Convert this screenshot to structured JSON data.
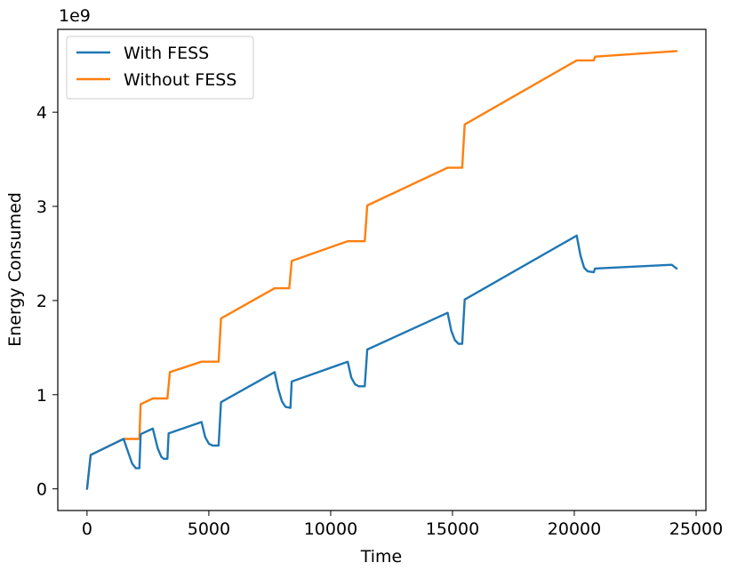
{
  "chart_data": {
    "type": "line",
    "xlabel": "Time",
    "ylabel": "Energy Consumed",
    "y_scale_label": "1e9",
    "xlim": [
      -1200,
      25400
    ],
    "ylim": [
      -0.23,
      4.88
    ],
    "xticks": [
      0,
      5000,
      10000,
      15000,
      20000,
      25000
    ],
    "xtick_labels": [
      "0",
      "5000",
      "10000",
      "15000",
      "20000",
      "25000"
    ],
    "yticks": [
      0,
      1,
      2,
      3,
      4
    ],
    "ytick_labels": [
      "0",
      "1",
      "2",
      "3",
      "4"
    ],
    "grid": false,
    "legend_position": "upper-left",
    "series": [
      {
        "name": "With FESS",
        "color": "#1f77b4",
        "points": [
          [
            0,
            0
          ],
          [
            150,
            0.36
          ],
          [
            1500,
            0.53
          ],
          [
            1700,
            0.38
          ],
          [
            1850,
            0.27
          ],
          [
            2000,
            0.22
          ],
          [
            2150,
            0.22
          ],
          [
            2200,
            0.58
          ],
          [
            2700,
            0.64
          ],
          [
            2900,
            0.43
          ],
          [
            3050,
            0.34
          ],
          [
            3150,
            0.32
          ],
          [
            3300,
            0.32
          ],
          [
            3350,
            0.59
          ],
          [
            4700,
            0.71
          ],
          [
            4850,
            0.55
          ],
          [
            5000,
            0.48
          ],
          [
            5150,
            0.46
          ],
          [
            5400,
            0.46
          ],
          [
            5500,
            0.92
          ],
          [
            7700,
            1.24
          ],
          [
            7850,
            1.06
          ],
          [
            8000,
            0.93
          ],
          [
            8150,
            0.87
          ],
          [
            8350,
            0.86
          ],
          [
            8400,
            1.14
          ],
          [
            10700,
            1.35
          ],
          [
            10850,
            1.18
          ],
          [
            11000,
            1.11
          ],
          [
            11150,
            1.09
          ],
          [
            11400,
            1.09
          ],
          [
            11500,
            1.48
          ],
          [
            14800,
            1.87
          ],
          [
            14950,
            1.68
          ],
          [
            15100,
            1.58
          ],
          [
            15250,
            1.54
          ],
          [
            15400,
            1.54
          ],
          [
            15500,
            2.01
          ],
          [
            20100,
            2.69
          ],
          [
            20250,
            2.48
          ],
          [
            20400,
            2.35
          ],
          [
            20550,
            2.31
          ],
          [
            20800,
            2.3
          ],
          [
            20850,
            2.34
          ],
          [
            24000,
            2.38
          ],
          [
            24200,
            2.34
          ]
        ]
      },
      {
        "name": "Without FESS",
        "color": "#ff7f0e",
        "points": [
          [
            0,
            0
          ],
          [
            150,
            0.36
          ],
          [
            1500,
            0.53
          ],
          [
            2150,
            0.53
          ],
          [
            2200,
            0.9
          ],
          [
            2700,
            0.96
          ],
          [
            3300,
            0.96
          ],
          [
            3400,
            1.24
          ],
          [
            4700,
            1.35
          ],
          [
            5400,
            1.35
          ],
          [
            5500,
            1.81
          ],
          [
            7700,
            2.13
          ],
          [
            8300,
            2.13
          ],
          [
            8400,
            2.42
          ],
          [
            10700,
            2.63
          ],
          [
            11400,
            2.63
          ],
          [
            11500,
            3.01
          ],
          [
            14800,
            3.41
          ],
          [
            15400,
            3.41
          ],
          [
            15500,
            3.87
          ],
          [
            20100,
            4.55
          ],
          [
            20800,
            4.55
          ],
          [
            20850,
            4.59
          ],
          [
            24200,
            4.65
          ]
        ]
      }
    ]
  }
}
